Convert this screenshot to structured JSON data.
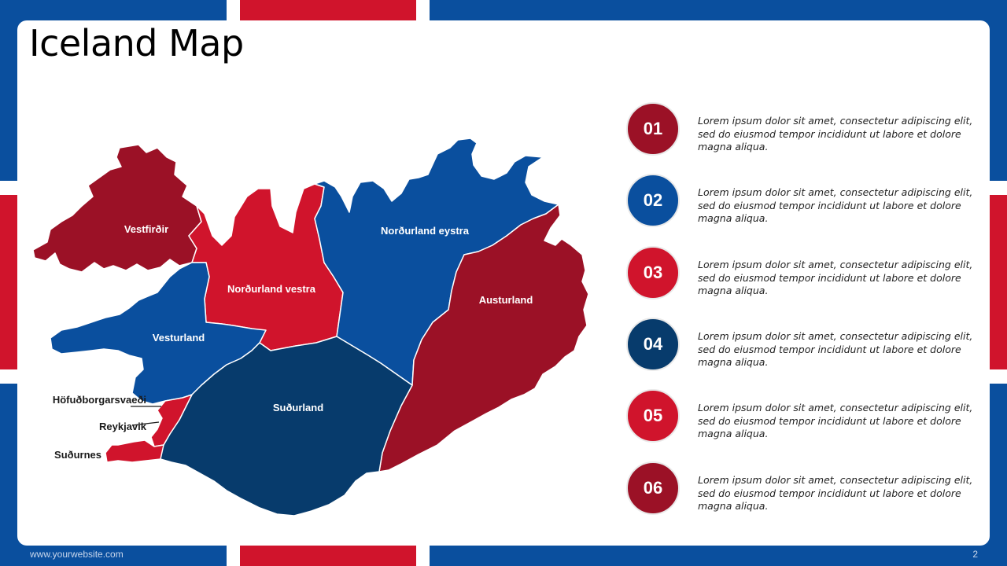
{
  "slide": {
    "title": "Iceland Map",
    "footer_url": "www.yourwebsite.com",
    "page_number": "2"
  },
  "colors": {
    "flag_blue": "#0a4f9e",
    "flag_red": "#d0142c",
    "dark_red": "#9b1126",
    "blue": "#0a4f9e",
    "navy": "#073b6c",
    "red": "#d0142c"
  },
  "map": {
    "regions": [
      {
        "id": "vestfirdir",
        "label": "Vestfirðir",
        "color": "#9b1126"
      },
      {
        "id": "nordurland-vestra",
        "label": "Norðurland vestra",
        "color": "#d0142c"
      },
      {
        "id": "nordurland-eystra",
        "label": "Norðurland eystra",
        "color": "#0a4f9e"
      },
      {
        "id": "austurland",
        "label": "Austurland",
        "color": "#9b1126"
      },
      {
        "id": "vesturland",
        "label": "Vesturland",
        "color": "#0a4f9e"
      },
      {
        "id": "sudurland",
        "label": "Suðurland",
        "color": "#073b6c"
      },
      {
        "id": "hofudborgarsvaedi",
        "label": "Höfuðborgarsvaeði",
        "color": "#d0142c"
      },
      {
        "id": "reykjavik",
        "label": "Reykjavik",
        "color": "#d0142c"
      },
      {
        "id": "sudurnes",
        "label": "Suðurnes",
        "color": "#d0142c"
      }
    ]
  },
  "items": [
    {
      "number": "01",
      "color": "#9b1126",
      "text": "Lorem ipsum dolor sit amet, consectetur adipiscing elit, sed do eiusmod tempor incididunt ut labore et dolore magna aliqua."
    },
    {
      "number": "02",
      "color": "#0a4f9e",
      "text": "Lorem ipsum dolor sit amet, consectetur adipiscing elit, sed do eiusmod tempor incididunt ut labore et dolore magna aliqua."
    },
    {
      "number": "03",
      "color": "#d0142c",
      "text": "Lorem ipsum dolor sit amet, consectetur adipiscing elit, sed do eiusmod tempor incididunt ut labore et dolore magna aliqua."
    },
    {
      "number": "04",
      "color": "#073b6c",
      "text": "Lorem ipsum dolor sit amet, consectetur adipiscing elit, sed do eiusmod tempor incididunt ut labore et dolore magna aliqua."
    },
    {
      "number": "05",
      "color": "#d0142c",
      "text": "Lorem ipsum dolor sit amet, consectetur adipiscing elit, sed do eiusmod tempor incididunt ut labore et dolore magna aliqua."
    },
    {
      "number": "06",
      "color": "#9b1126",
      "text": "Lorem ipsum dolor sit amet, consectetur adipiscing elit, sed do eiusmod tempor incididunt ut labore et dolore magna aliqua."
    }
  ]
}
